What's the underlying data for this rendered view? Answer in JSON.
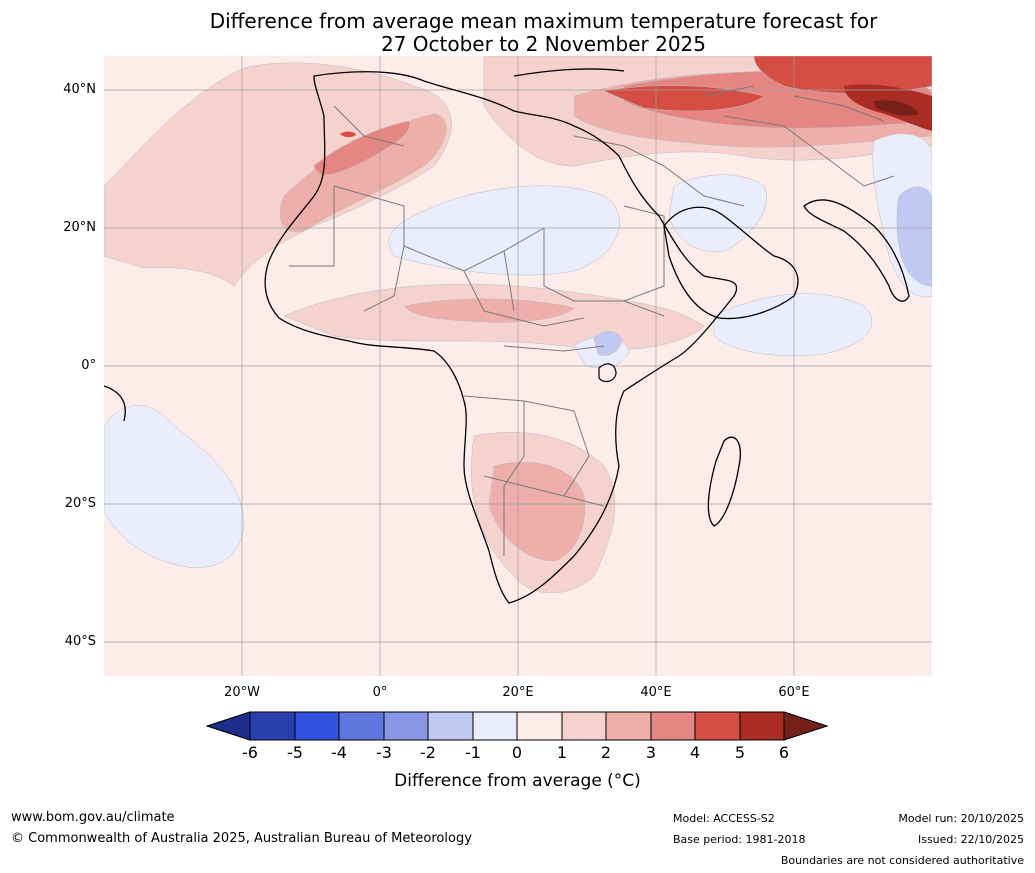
{
  "title": {
    "line1": "Difference from average mean maximum temperature forecast for",
    "line2": "27 October to 2 November 2025"
  },
  "map": {
    "lat_ticks": [
      "40°N",
      "20°N",
      "0°",
      "20°S",
      "40°S"
    ],
    "lon_ticks": [
      "20°W",
      "0°",
      "20°E",
      "40°E",
      "60°E"
    ]
  },
  "colorbar": {
    "labels": [
      "-6",
      "-5",
      "-4",
      "-3",
      "-2",
      "-1",
      "0",
      "1",
      "2",
      "3",
      "4",
      "5",
      "6"
    ],
    "colors": [
      "#1e2c8c",
      "#283fae",
      "#3252e0",
      "#5f76de",
      "#8797e6",
      "#c1c8f2",
      "#eaeefc",
      "#fcecea",
      "#f6d2cf",
      "#eeaeaa",
      "#e68682",
      "#d64d43",
      "#aa2c25",
      "#76201a"
    ],
    "title": "Difference from average (°C)"
  },
  "footer": {
    "website": "www.bom.gov.au/climate",
    "copyright": "© Commonwealth of Australia 2025, Australian Bureau of Meteorology",
    "model": "Model: ACCESS-S2",
    "base_period": "Base period: 1981-2018",
    "model_run": "Model run: 20/10/2025",
    "issued": "Issued: 22/10/2025",
    "disclaimer": "Boundaries are not considered authoritative"
  }
}
